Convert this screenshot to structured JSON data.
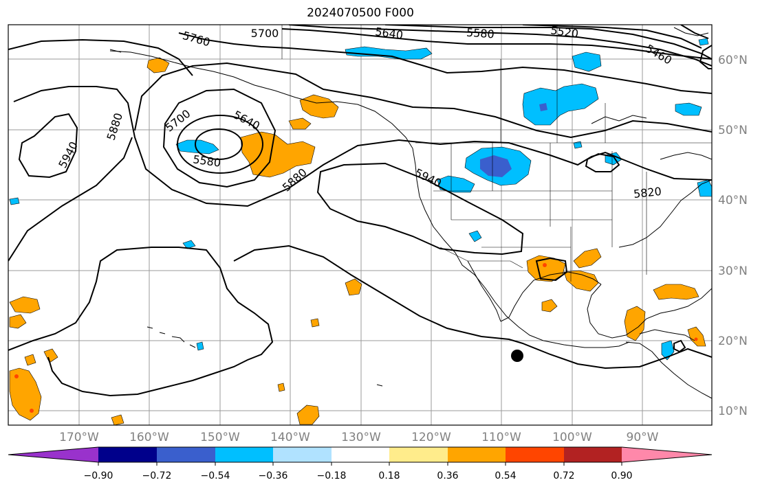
{
  "title": "2024070500 F000",
  "map": {
    "lat_labels": [
      "60°N",
      "50°N",
      "40°N",
      "30°N",
      "20°N",
      "10°N"
    ],
    "lon_labels": [
      "170°W",
      "160°W",
      "150°W",
      "140°W",
      "130°W",
      "120°W",
      "110°W",
      "100°W",
      "90°W"
    ],
    "contour_labels": [
      "5760",
      "5700",
      "5640",
      "5580",
      "5520",
      "5460",
      "5880",
      "5940",
      "5700",
      "5640",
      "5580",
      "5880",
      "5940",
      "5820"
    ],
    "marker": "storm-center-dot"
  },
  "colorbar": {
    "tick_labels": [
      "−0.90",
      "−0.72",
      "−0.54",
      "−0.36",
      "−0.18",
      "0.18",
      "0.36",
      "0.54",
      "0.72",
      "0.90"
    ],
    "colors": [
      "#9932cc",
      "#00008b",
      "#3a5fcd",
      "#00bfff",
      "#b0e2ff",
      "#ffffff",
      "#ffec8b",
      "#ffa500",
      "#ff4500",
      "#b22222",
      "#ff88aa"
    ]
  }
}
